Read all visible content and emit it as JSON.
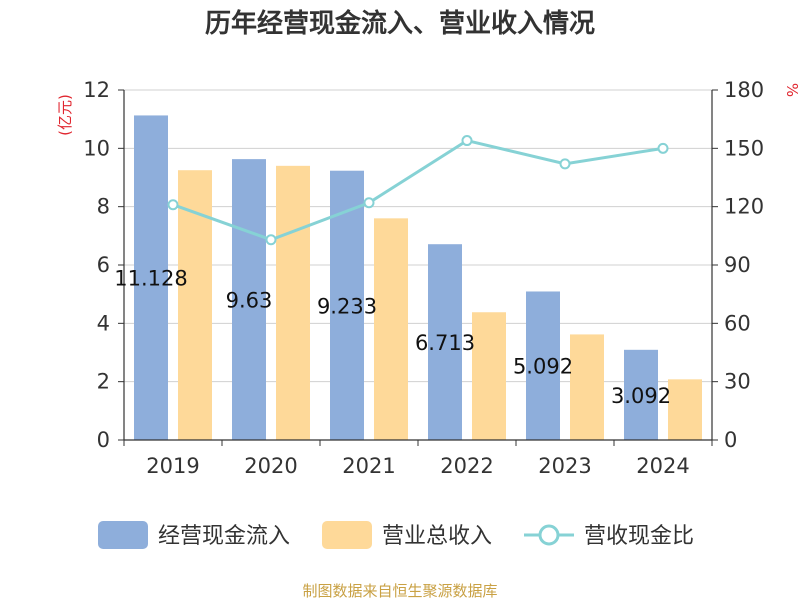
{
  "chart_data": {
    "type": "bar",
    "title": "历年经营现金流入、营业收入情况",
    "categories": [
      "2019",
      "2020",
      "2021",
      "2022",
      "2023",
      "2024"
    ],
    "y_left": {
      "unit": "(亿元)",
      "range": [
        0,
        12
      ],
      "ticks": [
        "0",
        "2",
        "4",
        "6",
        "8",
        "10",
        "12"
      ]
    },
    "y_right": {
      "unit": "%",
      "range": [
        0,
        180
      ],
      "ticks": [
        "0",
        "30",
        "60",
        "90",
        "120",
        "150",
        "180"
      ]
    },
    "grid": true,
    "legend_position": "bottom",
    "series": [
      {
        "name": "经营现金流入",
        "type": "bar",
        "axis": "left",
        "color": "#8eaedb",
        "values": [
          11.128,
          9.63,
          9.233,
          6.713,
          5.092,
          3.092
        ],
        "labels": [
          "11.128",
          "9.63",
          "9.233",
          "6.713",
          "5.092",
          "3.092"
        ]
      },
      {
        "name": "营业总收入",
        "type": "bar",
        "axis": "left",
        "color": "#fed999",
        "values": [
          9.25,
          9.4,
          7.6,
          4.38,
          3.62,
          2.08
        ]
      },
      {
        "name": "营收现金比",
        "type": "line",
        "axis": "right",
        "color": "#86d2d5",
        "values": [
          121,
          103,
          122,
          154,
          142,
          150
        ]
      }
    ]
  },
  "colors": {
    "unit_red": "#e0262f",
    "source_gold": "#c9a144",
    "axis": "#333333",
    "grid": "#d0d0d0"
  },
  "source": "制图数据来自恒生聚源数据库"
}
